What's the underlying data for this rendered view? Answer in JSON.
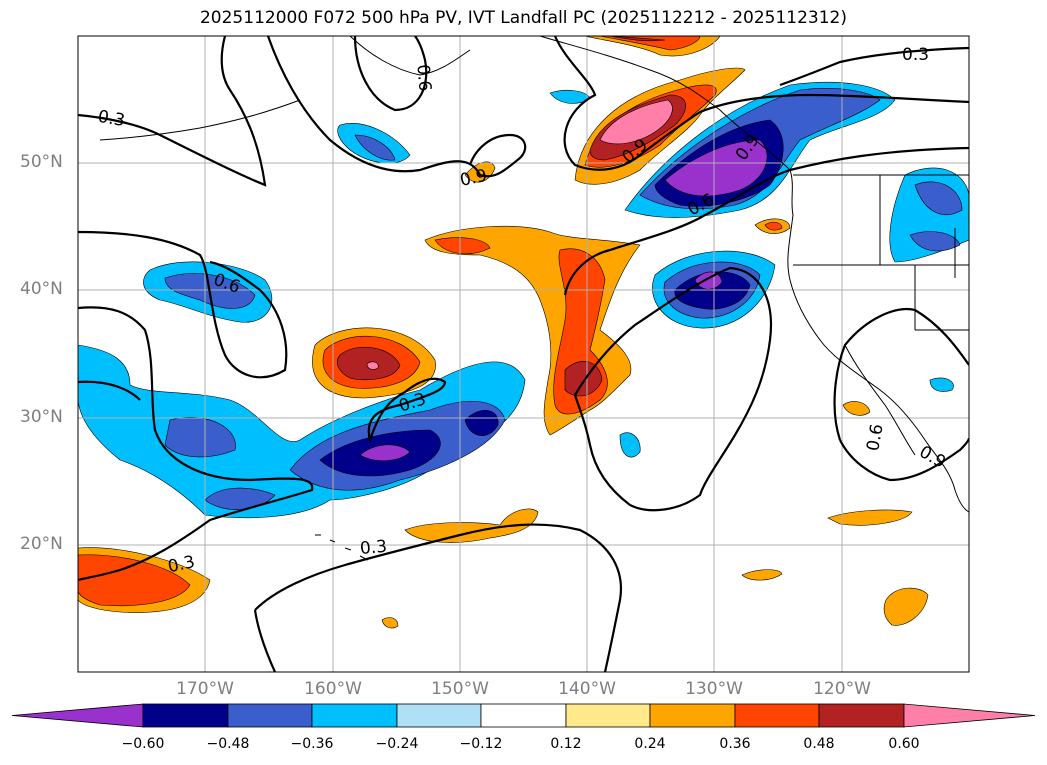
{
  "title": "2025112000 F072 500 hPa PV, IVT Landfall PC (2025112212 - 2025112312)",
  "map": {
    "lat_range": [
      10,
      60
    ],
    "lon_range": [
      -180,
      -110
    ],
    "lat_ticks": [
      "20°N",
      "30°N",
      "40°N",
      "50°N"
    ],
    "lon_ticks": [
      "170°W",
      "160°W",
      "150°W",
      "140°W",
      "130°W",
      "120°W"
    ],
    "grid": true,
    "contour_labels": [
      "0.3",
      "0.6",
      "0.9",
      "0.6",
      "0.3",
      "0.9",
      "0.6",
      "0.9",
      "0.3",
      "0.3",
      "0.3",
      "0.6",
      "0.9",
      "0.6"
    ]
  },
  "colorbar": {
    "ticks": [
      "−0.60",
      "−0.48",
      "−0.36",
      "−0.24",
      "−0.12",
      "0.12",
      "0.24",
      "0.36",
      "0.48",
      "0.60"
    ],
    "colors": [
      "#9932cc",
      "#00008b",
      "#3a5fcd",
      "#00bfff",
      "#b0e0f6",
      "#ffffff",
      "#ffe98a",
      "#ffa500",
      "#ff4500",
      "#b22222",
      "#ff7fa8"
    ],
    "extend": "both"
  },
  "legend_colors": {
    "purple": "#9932cc",
    "navy": "#00008b",
    "royal": "#3a5fcd",
    "sky": "#00bfff",
    "light_blue": "#b0e0f6",
    "yellow": "#ffe98a",
    "orange": "#ffa500",
    "red_orange": "#ff4500",
    "firebrick": "#b22222",
    "pink": "#ff7fa8"
  }
}
